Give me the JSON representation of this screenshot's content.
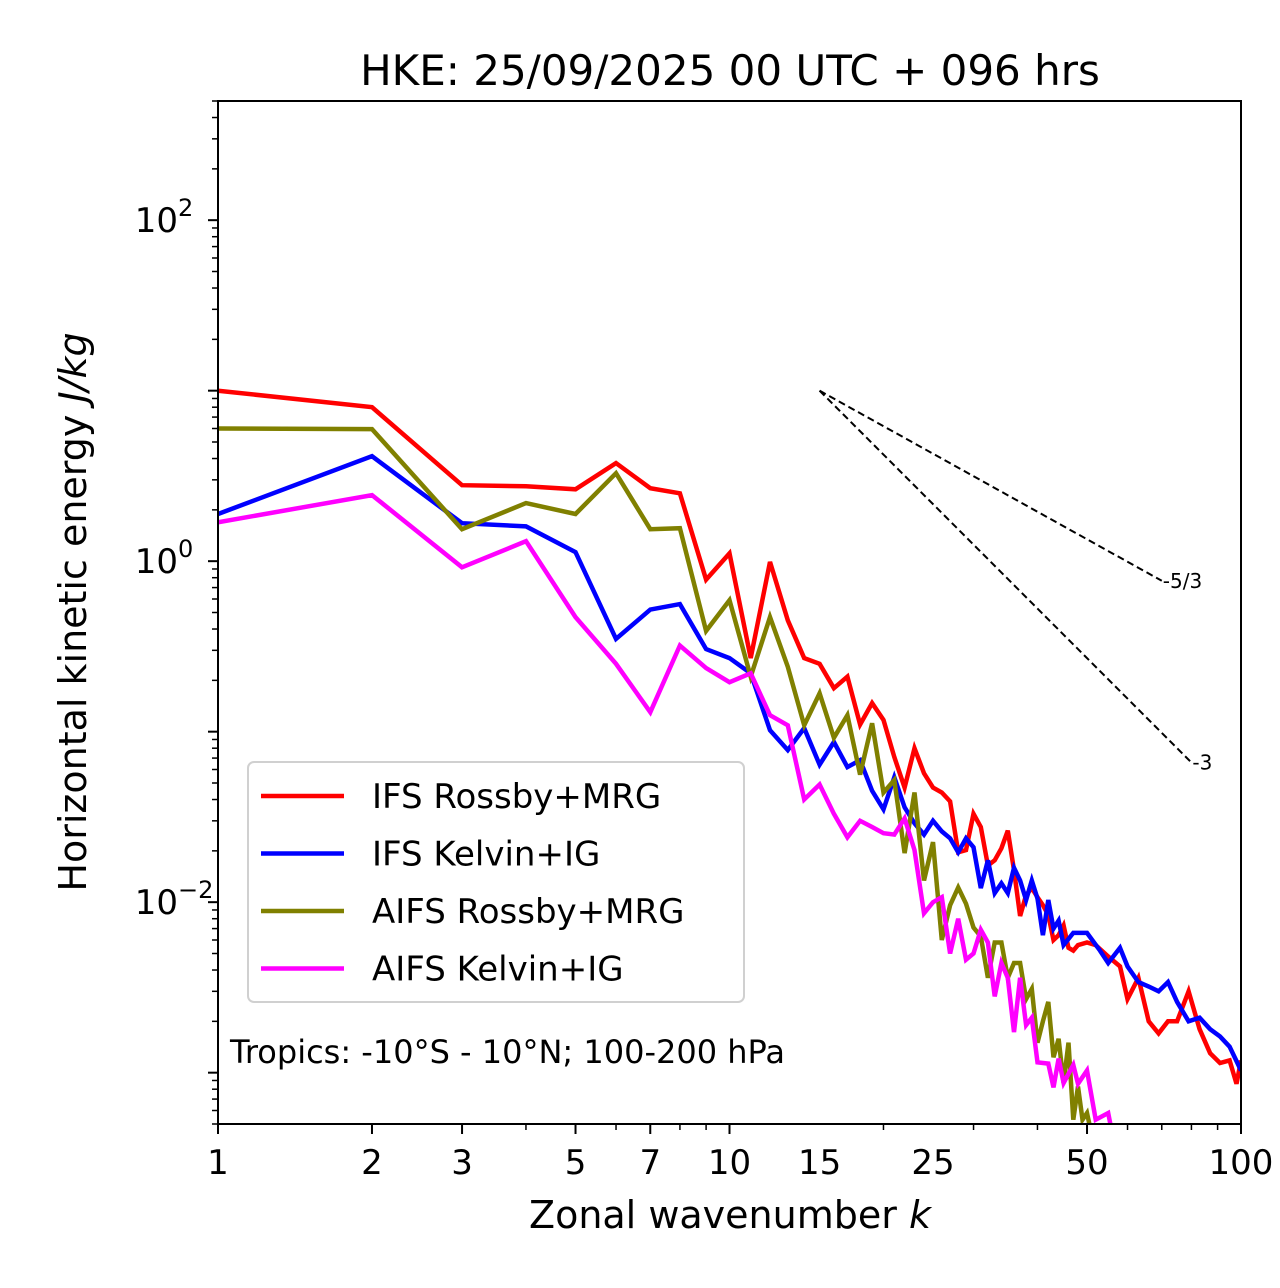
{
  "chart_data": {
    "type": "line",
    "title": "HKE: 25/09/2025 00 UTC + 096 hrs",
    "xlabel": "Zonal wavenumber",
    "xlabel_italic": "k",
    "ylabel": "Horizontal kinetic energy",
    "ylabel_italic": "J/kg",
    "xscale": "log",
    "yscale": "log",
    "xlim": [
      1,
      100
    ],
    "ylim": [
      0.0005,
      500
    ],
    "x_ticks": [
      {
        "value": 1,
        "label": "1"
      },
      {
        "value": 2,
        "label": "2"
      },
      {
        "value": 3,
        "label": "3"
      },
      {
        "value": 5,
        "label": "5"
      },
      {
        "value": 7,
        "label": "7"
      },
      {
        "value": 10,
        "label": "10"
      },
      {
        "value": 15,
        "label": "15"
      },
      {
        "value": 25,
        "label": "25"
      },
      {
        "value": 50,
        "label": "50"
      },
      {
        "value": 100,
        "label": "100"
      }
    ],
    "y_ticks": [
      {
        "value": 100,
        "base": "10",
        "exp": "2"
      },
      {
        "value": 1,
        "base": "10",
        "exp": "0"
      },
      {
        "value": 0.01,
        "base": "10",
        "exp": "−2"
      }
    ],
    "grid": false,
    "legend_position": "lower-left",
    "annotation": "Tropics: -10°S - 10°N; 100-200 hPa",
    "reference_lines": [
      {
        "label": "-5/3",
        "slope": -1.6667,
        "x_start": 15,
        "y_start": 10,
        "x_end": 70
      },
      {
        "label": "-3",
        "slope": -3,
        "x_start": 15,
        "y_start": 10,
        "x_end": 80
      }
    ],
    "series": [
      {
        "name": "IFS Rossby+MRG",
        "color": "#ff0000",
        "points": [
          [
            1,
            10.0
          ],
          [
            2,
            8.0
          ],
          [
            3,
            2.79
          ],
          [
            4,
            2.75
          ],
          [
            5,
            2.64
          ],
          [
            6,
            3.76
          ],
          [
            7,
            2.68
          ],
          [
            8,
            2.5
          ],
          [
            9,
            0.78
          ],
          [
            10,
            1.11
          ],
          [
            11,
            0.27
          ],
          [
            12,
            0.99
          ],
          [
            13,
            0.45
          ],
          [
            14,
            0.27
          ],
          [
            15,
            0.25
          ],
          [
            16,
            0.18
          ],
          [
            17,
            0.21
          ],
          [
            18,
            0.11
          ],
          [
            19,
            0.147
          ],
          [
            20,
            0.117
          ],
          [
            21,
            0.071
          ],
          [
            22,
            0.047
          ],
          [
            23,
            0.08
          ],
          [
            24,
            0.057
          ],
          [
            25,
            0.047
          ],
          [
            26,
            0.044
          ],
          [
            27,
            0.039
          ],
          [
            28,
            0.0196
          ],
          [
            29,
            0.0202
          ],
          [
            30,
            0.033
          ],
          [
            31,
            0.0276
          ],
          [
            32,
            0.0164
          ],
          [
            33,
            0.0176
          ],
          [
            34,
            0.0207
          ],
          [
            35,
            0.0263
          ],
          [
            36,
            0.0154
          ],
          [
            37,
            0.0083
          ],
          [
            38,
            0.011
          ],
          [
            39,
            0.0121
          ],
          [
            40,
            0.0107
          ],
          [
            41,
            0.0096
          ],
          [
            42,
            0.0084
          ],
          [
            43,
            0.006
          ],
          [
            44,
            0.0064
          ],
          [
            45,
            0.0073
          ],
          [
            46,
            0.0054
          ],
          [
            47,
            0.0052
          ],
          [
            48,
            0.0056
          ],
          [
            50,
            0.0058
          ],
          [
            52,
            0.0056
          ],
          [
            55,
            0.0048
          ],
          [
            58,
            0.0042
          ],
          [
            60,
            0.0027
          ],
          [
            63,
            0.0036
          ],
          [
            66,
            0.002
          ],
          [
            69,
            0.0017
          ],
          [
            72,
            0.002
          ],
          [
            75,
            0.002
          ],
          [
            79,
            0.003
          ],
          [
            83,
            0.0018
          ],
          [
            87,
            0.0013
          ],
          [
            91,
            0.00114
          ],
          [
            95,
            0.00118
          ],
          [
            98,
            0.00086
          ],
          [
            100,
            0.00118
          ]
        ]
      },
      {
        "name": "IFS Kelvin+IG",
        "color": "#0000ff",
        "points": [
          [
            1,
            1.89
          ],
          [
            2,
            4.13
          ],
          [
            3,
            1.67
          ],
          [
            4,
            1.6
          ],
          [
            5,
            1.13
          ],
          [
            6,
            0.35
          ],
          [
            7,
            0.52
          ],
          [
            8,
            0.56
          ],
          [
            9,
            0.305
          ],
          [
            10,
            0.27
          ],
          [
            11,
            0.22
          ],
          [
            12,
            0.102
          ],
          [
            13,
            0.078
          ],
          [
            14,
            0.105
          ],
          [
            15,
            0.064
          ],
          [
            16,
            0.087
          ],
          [
            17,
            0.062
          ],
          [
            18,
            0.068
          ],
          [
            19,
            0.045
          ],
          [
            20,
            0.035
          ],
          [
            21,
            0.054
          ],
          [
            22,
            0.036
          ],
          [
            23,
            0.029
          ],
          [
            24,
            0.0249
          ],
          [
            25,
            0.03
          ],
          [
            26,
            0.026
          ],
          [
            27,
            0.0237
          ],
          [
            28,
            0.0196
          ],
          [
            29,
            0.0237
          ],
          [
            30,
            0.021
          ],
          [
            31,
            0.0121
          ],
          [
            32,
            0.0176
          ],
          [
            33,
            0.0113
          ],
          [
            34,
            0.0129
          ],
          [
            35,
            0.0113
          ],
          [
            36,
            0.0159
          ],
          [
            37,
            0.0134
          ],
          [
            38,
            0.0103
          ],
          [
            39,
            0.0134
          ],
          [
            40,
            0.0105
          ],
          [
            41,
            0.0064
          ],
          [
            42,
            0.0103
          ],
          [
            43,
            0.007
          ],
          [
            44,
            0.0078
          ],
          [
            45,
            0.0056
          ],
          [
            47,
            0.0066
          ],
          [
            50,
            0.0066
          ],
          [
            53,
            0.0052
          ],
          [
            55,
            0.0044
          ],
          [
            58,
            0.0054
          ],
          [
            60,
            0.0042
          ],
          [
            63,
            0.0034
          ],
          [
            66,
            0.0032
          ],
          [
            69,
            0.003
          ],
          [
            72,
            0.0034
          ],
          [
            75,
            0.0026
          ],
          [
            79,
            0.002
          ],
          [
            83,
            0.0021
          ],
          [
            87,
            0.0018
          ],
          [
            91,
            0.00163
          ],
          [
            95,
            0.00142
          ],
          [
            100,
            0.00103
          ]
        ]
      },
      {
        "name": "AIFS Rossby+MRG",
        "color": "#808000",
        "points": [
          [
            1,
            6.0
          ],
          [
            2,
            5.95
          ],
          [
            3,
            1.54
          ],
          [
            4,
            2.19
          ],
          [
            5,
            1.89
          ],
          [
            6,
            3.28
          ],
          [
            7,
            1.54
          ],
          [
            8,
            1.56
          ],
          [
            9,
            0.39
          ],
          [
            10,
            0.59
          ],
          [
            11,
            0.21
          ],
          [
            12,
            0.47
          ],
          [
            13,
            0.24
          ],
          [
            14,
            0.109
          ],
          [
            15,
            0.168
          ],
          [
            16,
            0.092
          ],
          [
            17,
            0.125
          ],
          [
            18,
            0.056
          ],
          [
            19,
            0.112
          ],
          [
            20,
            0.044
          ],
          [
            21,
            0.052
          ],
          [
            22,
            0.0194
          ],
          [
            23,
            0.044
          ],
          [
            24,
            0.0134
          ],
          [
            25,
            0.0225
          ],
          [
            26,
            0.006
          ],
          [
            27,
            0.0096
          ],
          [
            28,
            0.0122
          ],
          [
            29,
            0.0098
          ],
          [
            30,
            0.0071
          ],
          [
            31,
            0.0063
          ],
          [
            32,
            0.0036
          ],
          [
            33,
            0.0058
          ],
          [
            34,
            0.0058
          ],
          [
            35,
            0.0036
          ],
          [
            36,
            0.0044
          ],
          [
            37,
            0.0044
          ],
          [
            38,
            0.0027
          ],
          [
            39,
            0.0031
          ],
          [
            40,
            0.0015
          ],
          [
            41,
            0.002
          ],
          [
            42,
            0.0026
          ],
          [
            43,
            0.00123
          ],
          [
            44,
            0.00158
          ],
          [
            45,
            0.00087
          ],
          [
            46,
            0.0015
          ],
          [
            47,
            0.00053
          ],
          [
            48,
            0.00083
          ],
          [
            49,
            0.00053
          ],
          [
            50,
            0.00058
          ],
          [
            51,
            0.00044
          ]
        ]
      },
      {
        "name": "AIFS Kelvin+IG",
        "color": "#ff00ff",
        "points": [
          [
            1,
            1.69
          ],
          [
            2,
            2.44
          ],
          [
            3,
            0.92
          ],
          [
            4,
            1.31
          ],
          [
            5,
            0.47
          ],
          [
            6,
            0.25
          ],
          [
            7,
            0.13
          ],
          [
            8,
            0.32
          ],
          [
            9,
            0.236
          ],
          [
            10,
            0.195
          ],
          [
            11,
            0.22
          ],
          [
            12,
            0.125
          ],
          [
            13,
            0.109
          ],
          [
            14,
            0.04
          ],
          [
            15,
            0.049
          ],
          [
            16,
            0.033
          ],
          [
            17,
            0.024
          ],
          [
            18,
            0.03
          ],
          [
            19,
            0.0276
          ],
          [
            20,
            0.0254
          ],
          [
            21,
            0.0249
          ],
          [
            22,
            0.031
          ],
          [
            23,
            0.0202
          ],
          [
            24,
            0.0086
          ],
          [
            25,
            0.01
          ],
          [
            26,
            0.0107
          ],
          [
            27,
            0.005
          ],
          [
            28,
            0.008
          ],
          [
            29,
            0.0046
          ],
          [
            30,
            0.005
          ],
          [
            31,
            0.0069
          ],
          [
            32,
            0.0058
          ],
          [
            33,
            0.0028
          ],
          [
            34,
            0.0044
          ],
          [
            35,
            0.0036
          ],
          [
            36,
            0.00173
          ],
          [
            37,
            0.0036
          ],
          [
            38,
            0.0019
          ],
          [
            39,
            0.0021
          ],
          [
            40,
            0.00115
          ],
          [
            42,
            0.00113
          ],
          [
            43,
            0.00082
          ],
          [
            44,
            0.00121
          ],
          [
            45,
            0.00087
          ],
          [
            47,
            0.00111
          ],
          [
            48,
            0.00086
          ],
          [
            50,
            0.00103
          ],
          [
            52,
            0.00053
          ],
          [
            55,
            0.00058
          ],
          [
            56,
            0.00044
          ]
        ]
      }
    ]
  }
}
